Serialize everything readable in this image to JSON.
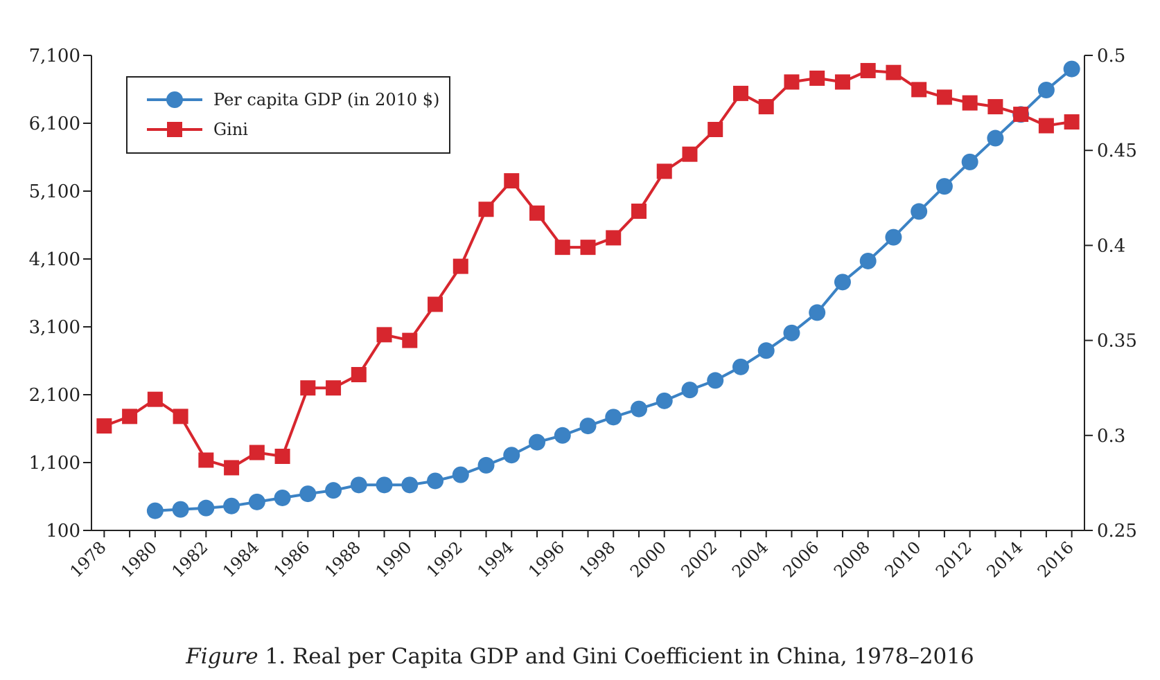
{
  "chart_data": {
    "type": "line",
    "title": "",
    "caption_prefix": "Figure",
    "caption_text": " 1. Real per Capita GDP and Gini Coefficient in China, 1978–2016",
    "x": [
      1978,
      1979,
      1980,
      1981,
      1982,
      1983,
      1984,
      1985,
      1986,
      1987,
      1988,
      1989,
      1990,
      1991,
      1992,
      1993,
      1994,
      1995,
      1996,
      1997,
      1998,
      1999,
      2000,
      2001,
      2002,
      2003,
      2004,
      2005,
      2006,
      2007,
      2008,
      2009,
      2010,
      2011,
      2012,
      2013,
      2014,
      2015,
      2016
    ],
    "xticks": [
      "1978",
      "1980",
      "1982",
      "1984",
      "1986",
      "1988",
      "1990",
      "1992",
      "1994",
      "1996",
      "1998",
      "2000",
      "2002",
      "2004",
      "2006",
      "2008",
      "2010",
      "2012",
      "2014",
      "2016"
    ],
    "xlim": [
      1977.5,
      2016.5
    ],
    "y_left": {
      "ticks": [
        "100",
        "1,100",
        "2,100",
        "3,100",
        "4,100",
        "5,100",
        "6,100",
        "7,100"
      ],
      "lim": [
        100,
        7100
      ]
    },
    "y_right": {
      "ticks": [
        "0.25",
        "0.3",
        "0.35",
        "0.4",
        "0.45",
        "0.5"
      ],
      "lim": [
        0.25,
        0.5
      ]
    },
    "legend_placement": "top-left",
    "grid": false,
    "series": [
      {
        "name": "Per capita GDP (in 2010 $)",
        "axis": "left",
        "color": "#3b82c4",
        "marker": "circle",
        "x": [
          1980,
          1981,
          1982,
          1983,
          1984,
          1985,
          1986,
          1987,
          1988,
          1989,
          1990,
          1991,
          1992,
          1993,
          1994,
          1995,
          1996,
          1997,
          1998,
          1999,
          2000,
          2001,
          2002,
          2003,
          2004,
          2005,
          2006,
          2007,
          2008,
          2009,
          2010,
          2011,
          2012,
          2013,
          2014,
          2015,
          2016
        ],
        "values": [
          390,
          410,
          430,
          460,
          520,
          580,
          640,
          690,
          770,
          770,
          770,
          830,
          920,
          1060,
          1210,
          1400,
          1500,
          1640,
          1770,
          1890,
          2010,
          2170,
          2310,
          2510,
          2750,
          3010,
          3310,
          3760,
          4070,
          4420,
          4800,
          5170,
          5530,
          5880,
          6230,
          6590,
          6900
        ]
      },
      {
        "name": "Gini",
        "axis": "right",
        "color": "#d7262e",
        "marker": "square",
        "x": [
          1978,
          1979,
          1980,
          1981,
          1982,
          1983,
          1984,
          1985,
          1986,
          1987,
          1988,
          1989,
          1990,
          1991,
          1992,
          1993,
          1994,
          1995,
          1996,
          1997,
          1998,
          1999,
          2000,
          2001,
          2002,
          2003,
          2004,
          2005,
          2006,
          2007,
          2008,
          2009,
          2010,
          2011,
          2012,
          2013,
          2014,
          2015,
          2016
        ],
        "values": [
          0.305,
          0.31,
          0.319,
          0.31,
          0.287,
          0.283,
          0.291,
          0.289,
          0.325,
          0.325,
          0.332,
          0.353,
          0.35,
          0.369,
          0.389,
          0.419,
          0.434,
          0.417,
          0.399,
          0.399,
          0.404,
          0.418,
          0.439,
          0.448,
          0.461,
          0.48,
          0.473,
          0.486,
          0.488,
          0.486,
          0.492,
          0.491,
          0.482,
          0.478,
          0.475,
          0.473,
          0.469,
          0.463,
          0.465
        ]
      }
    ]
  }
}
